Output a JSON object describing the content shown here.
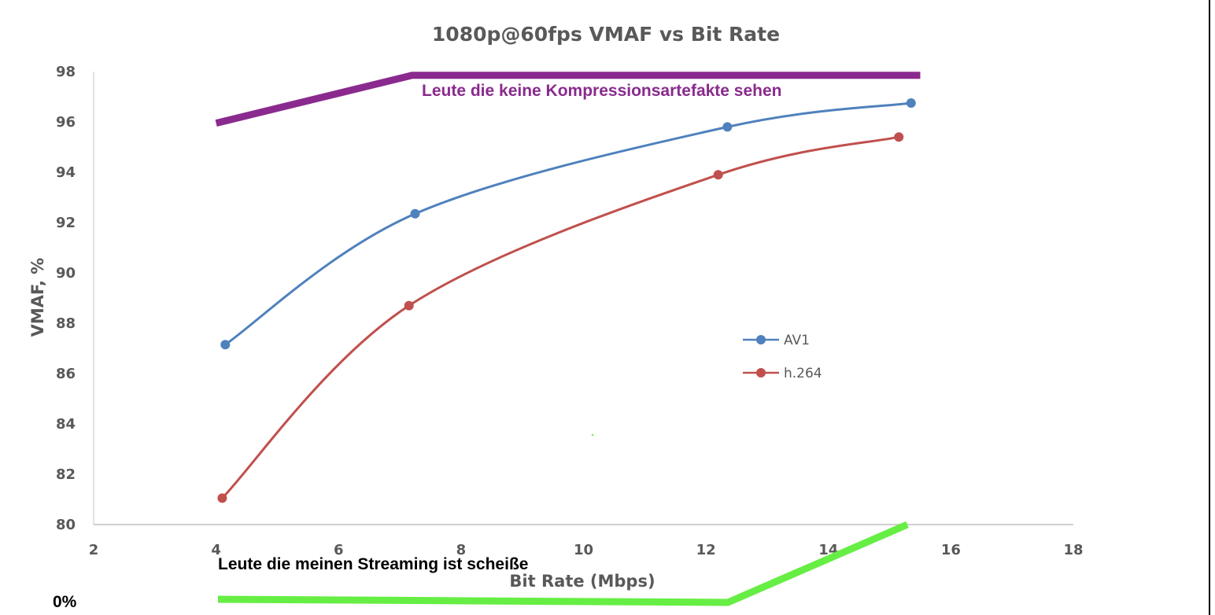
{
  "chart_data": {
    "type": "line",
    "title": "1080p@60fps VMAF vs Bit Rate",
    "xlabel": "Bit Rate (Mbps)",
    "ylabel": "VMAF, %",
    "xlim": [
      2,
      18
    ],
    "ylim": [
      80,
      98
    ],
    "xticks": [
      "2",
      "4",
      "6",
      "8",
      "10",
      "12",
      "14",
      "16",
      "18"
    ],
    "yticks": [
      "80",
      "82",
      "84",
      "86",
      "88",
      "90",
      "92",
      "94",
      "96",
      "98"
    ],
    "grid": false,
    "legend_position": "center-right",
    "series": [
      {
        "name": "AV1",
        "color": "#4f81bd",
        "x": [
          4.15,
          7.25,
          12.35,
          15.35
        ],
        "y": [
          87.15,
          92.35,
          95.8,
          96.75
        ]
      },
      {
        "name": "h.264",
        "color": "#c0504d",
        "x": [
          4.1,
          7.15,
          12.2,
          15.15
        ],
        "y": [
          81.05,
          88.7,
          93.9,
          95.4
        ]
      }
    ],
    "annotations": [
      {
        "text": "Leute die keine Kompressionsartefakte sehen",
        "color": "#8a2a8e"
      },
      {
        "text": "Leute die meinen Streaming ist scheiße",
        "color": "#000000"
      },
      {
        "text": "0%",
        "color": "#000000"
      }
    ],
    "overlay_lines": [
      {
        "color": "#8a2a8e",
        "x": [
          4.0,
          7.2,
          15.5
        ],
        "y": [
          95.95,
          97.85,
          97.85
        ]
      },
      {
        "color": "#66ee44"
      }
    ]
  }
}
